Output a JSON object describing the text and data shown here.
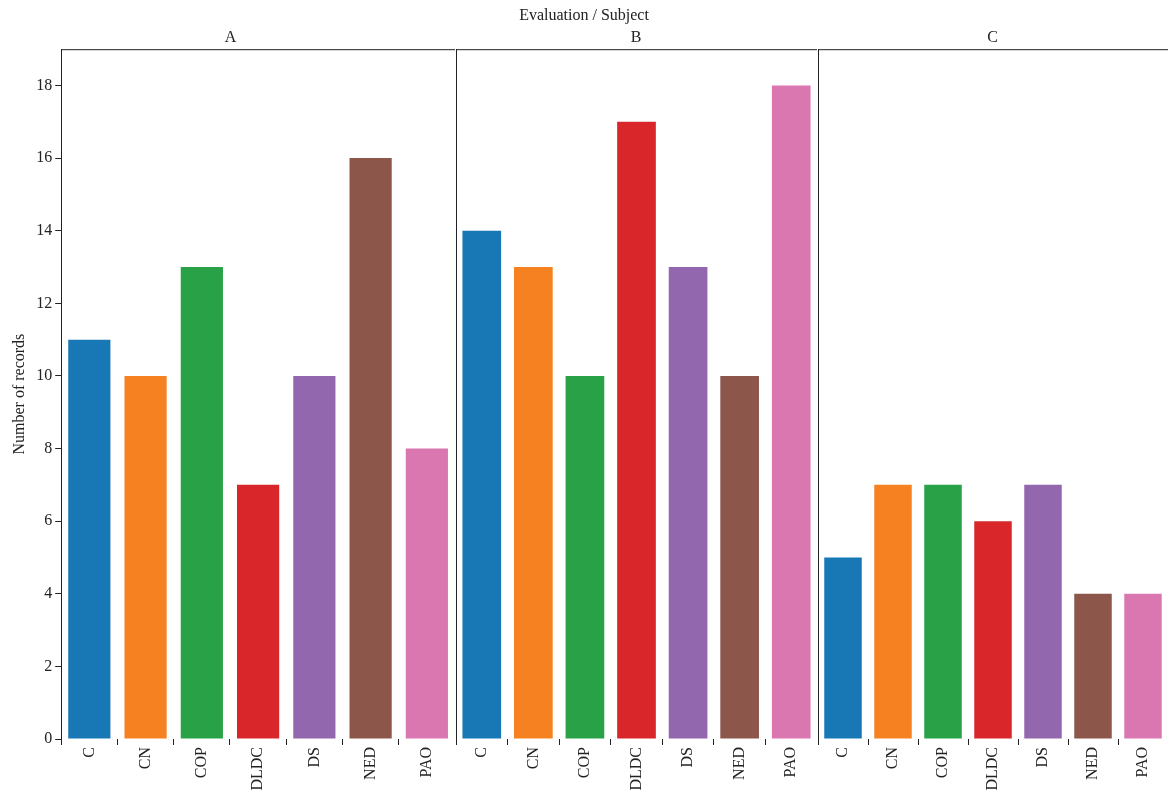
{
  "chart_data": [
    {
      "type": "bar",
      "title": "A",
      "annotations": [
        "Evaluation / Subject"
      ],
      "ylabel": "Number of records",
      "categories": [
        "C",
        "CN",
        "COP",
        "DLDC",
        "DS",
        "NED",
        "PAO"
      ],
      "values": [
        11,
        10,
        13,
        7,
        10,
        16,
        8
      ],
      "colors": [
        "#1878b6",
        "#f68121",
        "#28a147",
        "#d8262a",
        "#9367ae",
        "#8c564b",
        "#da77b1"
      ],
      "ylim": [
        0,
        19
      ],
      "yticks": [
        0,
        2,
        4,
        6,
        8,
        10,
        12,
        14,
        16,
        18
      ],
      "grid": false,
      "legend": false
    },
    {
      "type": "bar",
      "title": "B",
      "categories": [
        "C",
        "CN",
        "COP",
        "DLDC",
        "DS",
        "NED",
        "PAO"
      ],
      "values": [
        14,
        13,
        10,
        17,
        13,
        10,
        18
      ],
      "colors": [
        "#1878b6",
        "#f68121",
        "#28a147",
        "#d8262a",
        "#9367ae",
        "#8c564b",
        "#da77b1"
      ],
      "ylim": [
        0,
        19
      ],
      "yticks": [
        0,
        2,
        4,
        6,
        8,
        10,
        12,
        14,
        16,
        18
      ],
      "tick_labels": "x",
      "grid": false,
      "legend": false
    },
    {
      "type": "bar",
      "title": "C",
      "categories": [
        "C",
        "CN",
        "COP",
        "DLDC",
        "DS",
        "NED",
        "PAO"
      ],
      "values": [
        5,
        7,
        7,
        6,
        7,
        4,
        4
      ],
      "colors": [
        "#1878b6",
        "#f68121",
        "#28a147",
        "#d8262a",
        "#9367ae",
        "#8c564b",
        "#da77b1"
      ],
      "ylim": [
        0,
        19
      ],
      "yticks": [
        0,
        2,
        4,
        6,
        8,
        10,
        12,
        14,
        16,
        18
      ],
      "tick_labels": "x",
      "grid": false,
      "legend": false
    }
  ]
}
